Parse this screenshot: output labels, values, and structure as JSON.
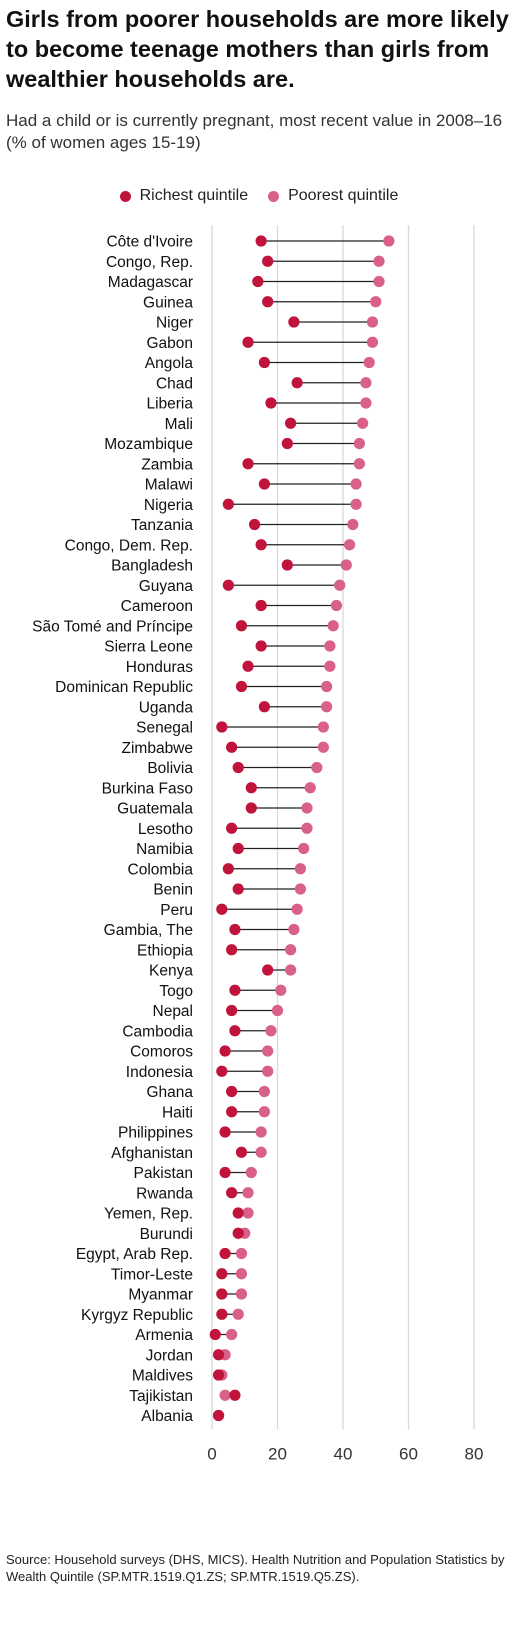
{
  "title": "Girls from poorer households are more likely to become teenage mothers than girls from wealthier households are.",
  "subtitle": "Had a child or is currently pregnant, most recent value in 2008–16 (% of women ages 15-19)",
  "legend": {
    "richest": "Richest quintile",
    "poorest": "Poorest quintile"
  },
  "colors": {
    "richest": "#c0143c",
    "poorest": "#d96088",
    "connector": "#222222",
    "grid": "#d9d9d9"
  },
  "source": "Source: Household surveys (DHS, MICS). Health Nutrition and Population Statistics by Wealth Quintile (SP.MTR.1519.Q1.ZS; SP.MTR.1519.Q5.ZS).",
  "chart_data": {
    "type": "dot_range",
    "xlim": [
      0,
      80
    ],
    "xticks": [
      0,
      20,
      40,
      60,
      80
    ],
    "grid": true,
    "legend_position": "top",
    "series": [
      {
        "name": "Richest quintile",
        "key": "richest"
      },
      {
        "name": "Poorest quintile",
        "key": "poorest"
      }
    ],
    "rows": [
      {
        "country": "Côte d'Ivoire",
        "richest": 15,
        "poorest": 54
      },
      {
        "country": "Congo, Rep.",
        "richest": 17,
        "poorest": 51
      },
      {
        "country": "Madagascar",
        "richest": 14,
        "poorest": 51
      },
      {
        "country": "Guinea",
        "richest": 17,
        "poorest": 50
      },
      {
        "country": "Niger",
        "richest": 25,
        "poorest": 49
      },
      {
        "country": "Gabon",
        "richest": 11,
        "poorest": 49
      },
      {
        "country": "Angola",
        "richest": 16,
        "poorest": 48
      },
      {
        "country": "Chad",
        "richest": 26,
        "poorest": 47
      },
      {
        "country": "Liberia",
        "richest": 18,
        "poorest": 47
      },
      {
        "country": "Mali",
        "richest": 24,
        "poorest": 46
      },
      {
        "country": "Mozambique",
        "richest": 23,
        "poorest": 45
      },
      {
        "country": "Zambia",
        "richest": 11,
        "poorest": 45
      },
      {
        "country": "Malawi",
        "richest": 16,
        "poorest": 44
      },
      {
        "country": "Nigeria",
        "richest": 5,
        "poorest": 44
      },
      {
        "country": "Tanzania",
        "richest": 13,
        "poorest": 43
      },
      {
        "country": "Congo, Dem. Rep.",
        "richest": 15,
        "poorest": 42
      },
      {
        "country": "Bangladesh",
        "richest": 23,
        "poorest": 41
      },
      {
        "country": "Guyana",
        "richest": 5,
        "poorest": 39
      },
      {
        "country": "Cameroon",
        "richest": 15,
        "poorest": 38
      },
      {
        "country": "São Tomé and Príncipe",
        "richest": 9,
        "poorest": 37
      },
      {
        "country": "Sierra Leone",
        "richest": 15,
        "poorest": 36
      },
      {
        "country": "Honduras",
        "richest": 11,
        "poorest": 36
      },
      {
        "country": "Dominican Republic",
        "richest": 9,
        "poorest": 35
      },
      {
        "country": "Uganda",
        "richest": 16,
        "poorest": 35
      },
      {
        "country": "Senegal",
        "richest": 3,
        "poorest": 34
      },
      {
        "country": "Zimbabwe",
        "richest": 6,
        "poorest": 34
      },
      {
        "country": "Bolivia",
        "richest": 8,
        "poorest": 32
      },
      {
        "country": "Burkina Faso",
        "richest": 12,
        "poorest": 30
      },
      {
        "country": "Guatemala",
        "richest": 12,
        "poorest": 29
      },
      {
        "country": "Lesotho",
        "richest": 6,
        "poorest": 29
      },
      {
        "country": "Namibia",
        "richest": 8,
        "poorest": 28
      },
      {
        "country": "Colombia",
        "richest": 5,
        "poorest": 27
      },
      {
        "country": "Benin",
        "richest": 8,
        "poorest": 27
      },
      {
        "country": "Peru",
        "richest": 3,
        "poorest": 26
      },
      {
        "country": "Gambia, The",
        "richest": 7,
        "poorest": 25
      },
      {
        "country": "Ethiopia",
        "richest": 6,
        "poorest": 24
      },
      {
        "country": "Kenya",
        "richest": 17,
        "poorest": 24
      },
      {
        "country": "Togo",
        "richest": 7,
        "poorest": 21
      },
      {
        "country": "Nepal",
        "richest": 6,
        "poorest": 20
      },
      {
        "country": "Cambodia",
        "richest": 7,
        "poorest": 18
      },
      {
        "country": "Comoros",
        "richest": 4,
        "poorest": 17
      },
      {
        "country": "Indonesia",
        "richest": 3,
        "poorest": 17
      },
      {
        "country": "Ghana",
        "richest": 6,
        "poorest": 16
      },
      {
        "country": "Haiti",
        "richest": 6,
        "poorest": 16
      },
      {
        "country": "Philippines",
        "richest": 4,
        "poorest": 15
      },
      {
        "country": "Afghanistan",
        "richest": 9,
        "poorest": 15
      },
      {
        "country": "Pakistan",
        "richest": 4,
        "poorest": 12
      },
      {
        "country": "Rwanda",
        "richest": 6,
        "poorest": 11
      },
      {
        "country": "Yemen, Rep.",
        "richest": 8,
        "poorest": 11
      },
      {
        "country": "Burundi",
        "richest": 8,
        "poorest": 10
      },
      {
        "country": "Egypt, Arab Rep.",
        "richest": 4,
        "poorest": 9
      },
      {
        "country": "Timor-Leste",
        "richest": 3,
        "poorest": 9
      },
      {
        "country": "Myanmar",
        "richest": 3,
        "poorest": 9
      },
      {
        "country": "Kyrgyz Republic",
        "richest": 3,
        "poorest": 8
      },
      {
        "country": "Armenia",
        "richest": 1,
        "poorest": 6
      },
      {
        "country": "Jordan",
        "richest": 2,
        "poorest": 4
      },
      {
        "country": "Maldives",
        "richest": 2,
        "poorest": 3
      },
      {
        "country": "Tajikistan",
        "richest": 7,
        "poorest": 4
      },
      {
        "country": "Albania",
        "richest": 2,
        "poorest": 2
      }
    ]
  }
}
